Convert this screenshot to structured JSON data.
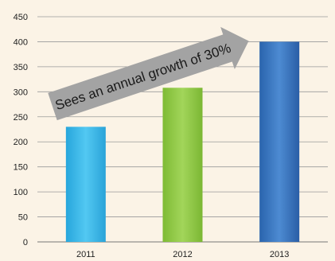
{
  "chart_data": {
    "type": "bar",
    "categories": [
      "2011",
      "2012",
      "2013"
    ],
    "values": [
      230,
      308,
      400
    ],
    "ylim": [
      0,
      450
    ],
    "yticks": [
      0,
      50,
      100,
      150,
      200,
      250,
      300,
      350,
      400,
      450
    ],
    "grid": true,
    "bar_colors": [
      "#2eb3ea",
      "#8cc63e",
      "#2f6fba"
    ],
    "annotation": "Sees an annual growth of 30%",
    "annotation_color": "#a3a3a3",
    "background": "#fbf3e6"
  }
}
